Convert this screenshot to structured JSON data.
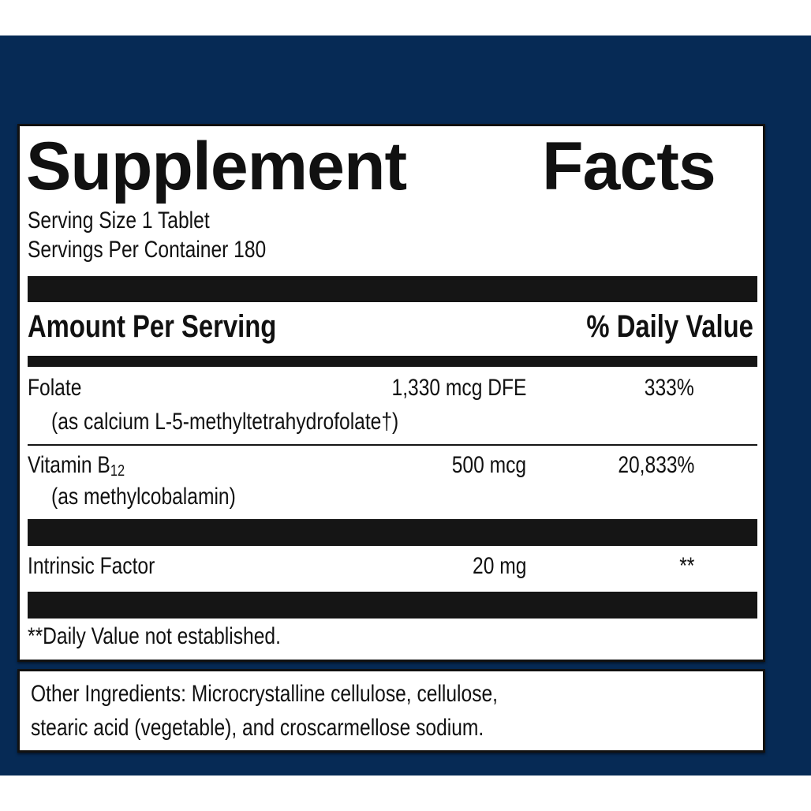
{
  "label": {
    "title_word1": "Supplement",
    "title_word2": "Facts",
    "serving_size": "Serving Size 1 Tablet",
    "servings_per_container": "Servings Per Container 180",
    "header_amount": "Amount Per Serving",
    "header_dv": "% Daily Value",
    "nutrients": [
      {
        "name": "Folate",
        "sub": "(as calcium L-5-methyltetrahydrofolate†)",
        "amount": "1,330 mcg DFE",
        "dv": "333%"
      },
      {
        "name": "Vitamin B",
        "name_subscript": "12",
        "sub": "(as methylcobalamin)",
        "amount": "500 mcg",
        "dv": "20,833%"
      },
      {
        "name": "Intrinsic Factor",
        "amount": "20 mg",
        "dv": "**"
      }
    ],
    "footnote": "**Daily Value not established."
  },
  "other_ingredients": {
    "line1": "Other Ingredients: Microcrystalline cellulose, cellulose,",
    "line2": "stearic acid (vegetable), and croscarmellose sodium."
  },
  "colors": {
    "background": "#062a55",
    "panel": "#ffffff",
    "text": "#111111"
  }
}
